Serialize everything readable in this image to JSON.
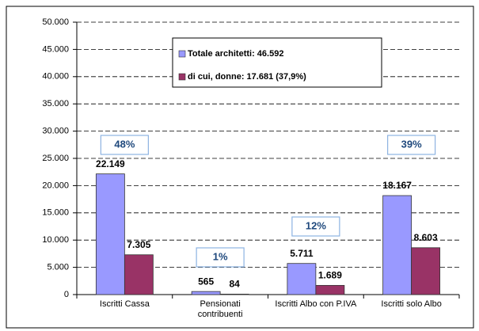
{
  "chart_data": {
    "type": "bar",
    "categories": [
      "Iscritti Cassa",
      "Pensionati contribuenti",
      "Iscritti Albo con P.IVA",
      "Iscritti  solo Albo"
    ],
    "series": [
      {
        "name": "Totale architetti: 46.592",
        "color": "#9999ff",
        "values": [
          22149,
          565,
          5711,
          18167
        ],
        "value_labels": [
          "22.149",
          "565",
          "5.711",
          "18.167"
        ]
      },
      {
        "name": "di cui, donne: 17.681 (37,9%)",
        "color": "#993366",
        "values": [
          7305,
          84,
          1689,
          8603
        ],
        "value_labels": [
          "7.305",
          "84",
          "1.689",
          "8.603"
        ]
      }
    ],
    "annotations": [
      "48%",
      "1%",
      "12%",
      "39%"
    ],
    "ylim": [
      0,
      50000
    ],
    "yticks": [
      {
        "value": 0,
        "label": "0"
      },
      {
        "value": 5000,
        "label": "5.000"
      },
      {
        "value": 10000,
        "label": "10.000"
      },
      {
        "value": 15000,
        "label": "15.000"
      },
      {
        "value": 20000,
        "label": "20.000"
      },
      {
        "value": 25000,
        "label": "25.000"
      },
      {
        "value": 30000,
        "label": "30.000"
      },
      {
        "value": 35000,
        "label": "35.000"
      },
      {
        "value": 40000,
        "label": "40.000"
      },
      {
        "value": 45000,
        "label": "45.000"
      },
      {
        "value": 50000,
        "label": "50.000"
      }
    ],
    "grid": true,
    "legend": "top"
  }
}
